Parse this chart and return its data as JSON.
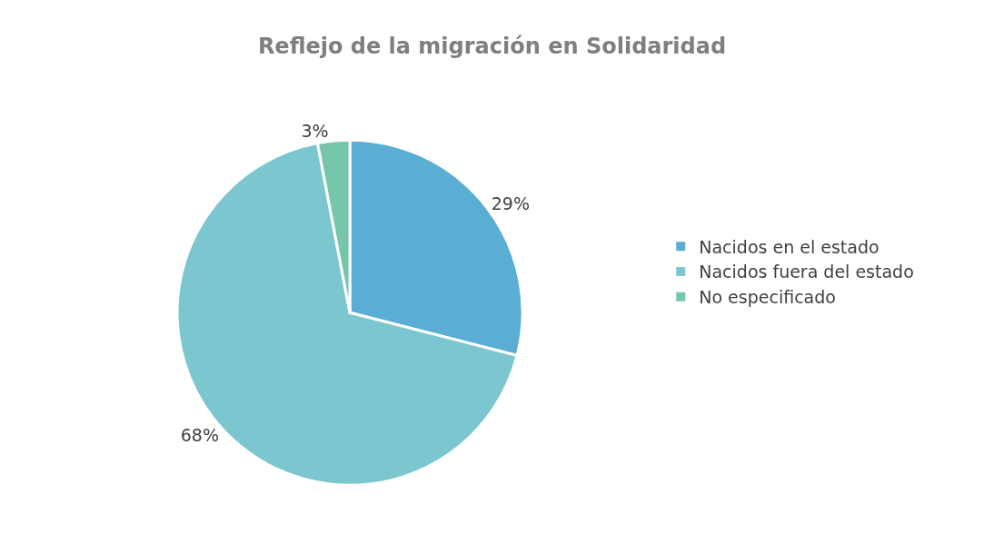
{
  "chart_data": {
    "type": "pie",
    "title": "Reflejo de la migración en Solidaridad",
    "categories": [
      "Nacidos en el estado",
      "Nacidos fuera del estado",
      "No especificado"
    ],
    "values": [
      29,
      68,
      3
    ],
    "colors": [
      "#5aaed3",
      "#7cc6cf",
      "#77c6aa"
    ],
    "value_labels": [
      "29%",
      "68%",
      "3%"
    ],
    "legend": "right"
  }
}
